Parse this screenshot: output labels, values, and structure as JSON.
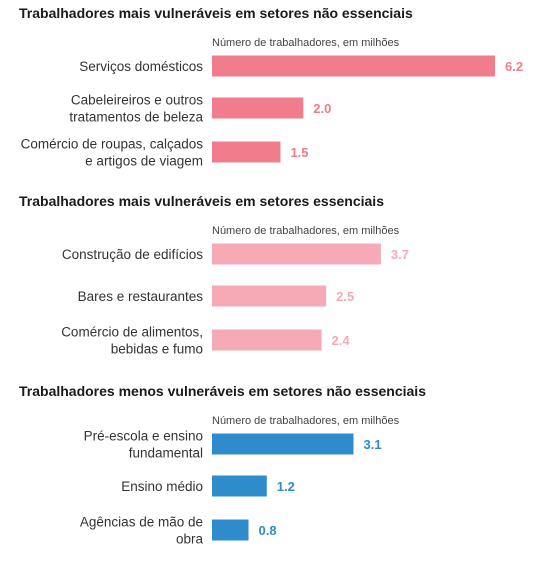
{
  "colors": {
    "panel_1": "#f07c8c",
    "panel_2": "#f6aab6",
    "panel_3": "#2e8bcc"
  },
  "chart_data": [
    {
      "type": "bar",
      "orientation": "horizontal",
      "title": "Trabalhadores mais vulneráveis em setores não essenciais",
      "xlabel": "Número de trabalhadores, em milhões",
      "categories": [
        [
          "Serviços domésticos"
        ],
        [
          "Cabeleireiros e outros",
          "tratamentos de beleza"
        ],
        [
          "Comércio de roupas, calçados",
          "e artigos de viagem"
        ]
      ],
      "values": [
        6.2,
        2.0,
        1.5
      ],
      "value_labels": [
        "6.2",
        "2.0",
        "1.5"
      ],
      "xlim": [
        0,
        6.2
      ],
      "color": "#f07c8c"
    },
    {
      "type": "bar",
      "orientation": "horizontal",
      "title": "Trabalhadores mais vulneráveis em setores essenciais",
      "xlabel": "Número de trabalhadores, em milhões",
      "categories": [
        [
          "Construção de edifícios"
        ],
        [
          "Bares e restaurantes"
        ],
        [
          "Comércio de alimentos,",
          "bebidas e fumo"
        ]
      ],
      "values": [
        3.7,
        2.5,
        2.4
      ],
      "value_labels": [
        "3.7",
        "2.5",
        "2.4"
      ],
      "xlim": [
        0,
        6.2
      ],
      "color": "#f6aab6"
    },
    {
      "type": "bar",
      "orientation": "horizontal",
      "title": "Trabalhadores menos vulneráveis em setores não essenciais",
      "xlabel": "Número de trabalhadores, em milhões",
      "categories": [
        [
          "Pré-escola e ensino",
          "fundamental"
        ],
        [
          "Ensino médio"
        ],
        [
          "Agências de mão de",
          "obra"
        ]
      ],
      "values": [
        3.1,
        1.2,
        0.8
      ],
      "value_labels": [
        "3.1",
        "1.2",
        "0.8"
      ],
      "xlim": [
        0,
        6.2
      ],
      "color": "#2e8bcc"
    }
  ]
}
